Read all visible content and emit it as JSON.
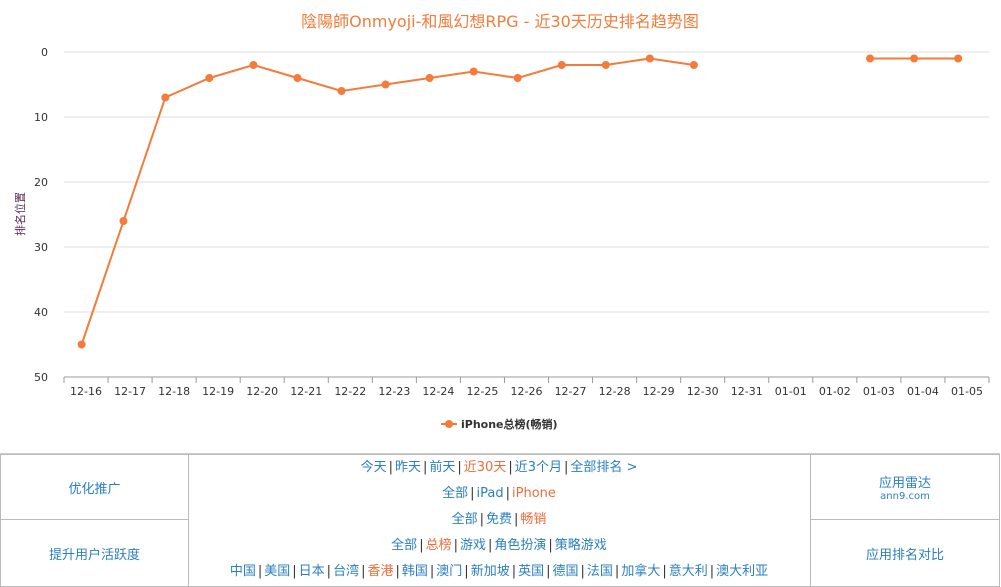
{
  "chart_data": {
    "type": "line",
    "title": "陰陽師Onmyoji-和風幻想RPG - 近30天历史排名趋势图",
    "ylabel": "排名位置",
    "xlabel": "",
    "ylim": [
      0,
      50
    ],
    "y_inverted": true,
    "y_ticks": [
      "0",
      "10",
      "20",
      "30",
      "40",
      "50"
    ],
    "categories": [
      "12-16",
      "12-17",
      "12-18",
      "12-19",
      "12-20",
      "12-21",
      "12-22",
      "12-23",
      "12-24",
      "12-25",
      "12-26",
      "12-27",
      "12-28",
      "12-29",
      "12-30",
      "12-31",
      "01-01",
      "01-02",
      "01-03",
      "01-04",
      "01-05"
    ],
    "series": [
      {
        "name": "iPhone总榜(畅销)",
        "color": "#f47b3a",
        "x": [
          0.4,
          1.35,
          2.3,
          3.3,
          4.3,
          5.3,
          6.3,
          7.3,
          8.3,
          9.3,
          10.3,
          11.3,
          12.3,
          13.3,
          14.3,
          18.3,
          19.3,
          20.3
        ],
        "values": [
          45,
          26,
          7,
          4,
          2,
          4,
          6,
          5,
          4,
          3,
          4,
          2,
          2,
          1,
          2,
          1,
          1,
          1
        ],
        "segments": [
          [
            0,
            14
          ],
          [
            15,
            17
          ]
        ]
      }
    ],
    "grid": true,
    "legend": "bottom"
  },
  "panel": {
    "left_top": "优化推广",
    "left_bottom": "提升用户活跃度",
    "right_top": "应用雷达",
    "right_top_sub": "ann9.com",
    "right_bottom": "应用排名对比",
    "row1": [
      {
        "label": "今天",
        "active": false
      },
      {
        "label": "昨天",
        "active": false
      },
      {
        "label": "前天",
        "active": false
      },
      {
        "label": "近30天",
        "active": true
      },
      {
        "label": "近3个月",
        "active": false
      },
      {
        "label": "全部排名 >",
        "active": false
      }
    ],
    "row2": [
      {
        "label": "全部",
        "active": false
      },
      {
        "label": "iPad",
        "active": false
      },
      {
        "label": "iPhone",
        "active": true
      }
    ],
    "row3": [
      {
        "label": "全部",
        "active": false
      },
      {
        "label": "免费",
        "active": false
      },
      {
        "label": "畅销",
        "active": true
      }
    ],
    "row4": [
      {
        "label": "全部",
        "active": false
      },
      {
        "label": "总榜",
        "active": true
      },
      {
        "label": "游戏",
        "active": false
      },
      {
        "label": "角色扮演",
        "active": false
      },
      {
        "label": "策略游戏",
        "active": false
      }
    ],
    "row5": [
      {
        "label": "中国",
        "active": false
      },
      {
        "label": "美国",
        "active": false
      },
      {
        "label": "日本",
        "active": false
      },
      {
        "label": "台湾",
        "active": false
      },
      {
        "label": "香港",
        "active": true
      },
      {
        "label": "韩国",
        "active": false
      },
      {
        "label": "澳门",
        "active": false
      },
      {
        "label": "新加坡",
        "active": false
      },
      {
        "label": "英国",
        "active": false
      },
      {
        "label": "德国",
        "active": false
      },
      {
        "label": "法国",
        "active": false
      },
      {
        "label": "加拿大",
        "active": false
      },
      {
        "label": "意大利",
        "active": false
      },
      {
        "label": "澳大利亚",
        "active": false
      }
    ]
  }
}
